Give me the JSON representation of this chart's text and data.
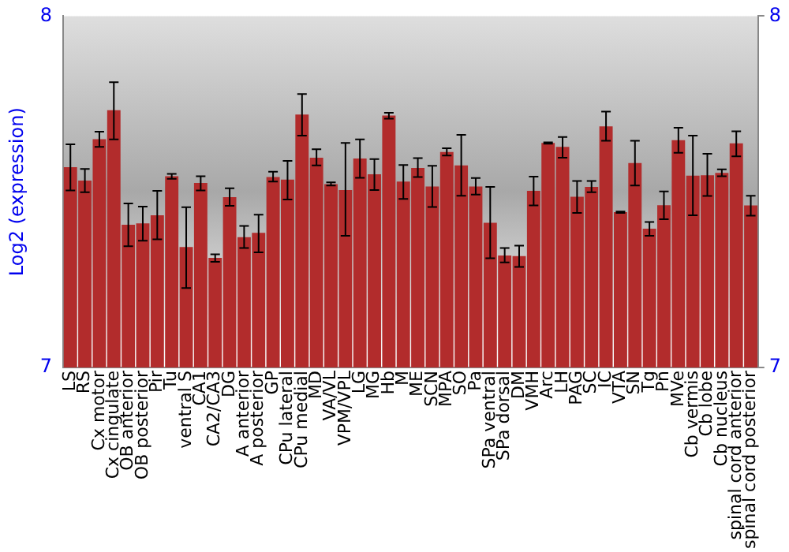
{
  "chart_data": {
    "type": "bar",
    "ylabel": "Log2 (expression)",
    "categories": [
      "LS",
      "RS",
      "Cx motor",
      "Cx cingulate",
      "OB anterior",
      "OB posterior",
      "Pir",
      "Tu",
      "ventral S",
      "CA1",
      "CA2/CA3",
      "DG",
      "A anterior",
      "A posterior",
      "GP",
      "CPu lateral",
      "CPu medial",
      "MD",
      "VA/VL",
      "VPM/VPL",
      "LG",
      "MG",
      "Hb",
      "M",
      "ME",
      "SCN",
      "MPA",
      "SO",
      "Pa",
      "SPa ventral",
      "SPa dorsal",
      "DM",
      "VMH",
      "Arc",
      "LH",
      "PAG",
      "SC",
      "IC",
      "VTA",
      "SN",
      "Tg",
      "Pn",
      "MVe",
      "Cb vermis",
      "Cb lobe",
      "Cb nucleus",
      "spinal cord anterior",
      "spinal cord posterior"
    ],
    "values": [
      7.57,
      7.532,
      7.65,
      7.732,
      7.406,
      7.41,
      7.433,
      7.544,
      7.343,
      7.525,
      7.312,
      7.485,
      7.371,
      7.383,
      7.542,
      7.535,
      7.72,
      7.597,
      7.522,
      7.505,
      7.595,
      7.55,
      7.717,
      7.529,
      7.568,
      7.515,
      7.613,
      7.575,
      7.515,
      7.412,
      7.319,
      7.317,
      7.503,
      7.639,
      7.628,
      7.486,
      7.514,
      7.686,
      7.442,
      7.582,
      7.395,
      7.462,
      7.647,
      7.546,
      7.547,
      7.554,
      7.638,
      7.461
    ],
    "errors": [
      [
        7.504,
        7.635
      ],
      [
        7.499,
        7.565
      ],
      [
        7.628,
        7.671
      ],
      [
        7.649,
        7.812
      ],
      [
        7.345,
        7.467
      ],
      [
        7.361,
        7.458
      ],
      [
        7.365,
        7.503
      ],
      [
        7.537,
        7.551
      ],
      [
        7.226,
        7.456
      ],
      [
        7.504,
        7.544
      ],
      [
        7.301,
        7.322
      ],
      [
        7.46,
        7.51
      ],
      [
        7.34,
        7.403
      ],
      [
        7.328,
        7.435
      ],
      [
        7.529,
        7.557
      ],
      [
        7.478,
        7.588
      ],
      [
        7.66,
        7.778
      ],
      [
        7.575,
        7.621
      ],
      [
        7.518,
        7.527
      ],
      [
        7.375,
        7.639
      ],
      [
        7.54,
        7.649
      ],
      [
        7.505,
        7.593
      ],
      [
        7.708,
        7.725
      ],
      [
        7.48,
        7.576
      ],
      [
        7.542,
        7.596
      ],
      [
        7.457,
        7.574
      ],
      [
        7.603,
        7.624
      ],
      [
        7.489,
        7.662
      ],
      [
        7.492,
        7.539
      ],
      [
        7.311,
        7.514
      ],
      [
        7.299,
        7.34
      ],
      [
        7.286,
        7.347
      ],
      [
        7.461,
        7.543
      ],
      [
        7.637,
        7.641
      ],
      [
        7.597,
        7.656
      ],
      [
        7.44,
        7.531
      ],
      [
        7.499,
        7.531
      ],
      [
        7.645,
        7.728
      ],
      [
        7.44,
        7.444
      ],
      [
        7.518,
        7.645
      ],
      [
        7.375,
        7.414
      ],
      [
        7.422,
        7.501
      ],
      [
        7.611,
        7.682
      ],
      [
        7.433,
        7.66
      ],
      [
        7.488,
        7.608
      ],
      [
        7.544,
        7.564
      ],
      [
        7.601,
        7.672
      ],
      [
        7.432,
        7.489
      ]
    ],
    "color": "#b22c2c",
    "ylim": [
      7,
      8
    ],
    "yticks": [
      7,
      8
    ],
    "y2lim": [
      7,
      8
    ],
    "y2ticks": [
      7,
      8
    ],
    "grid": false,
    "legend": false
  }
}
